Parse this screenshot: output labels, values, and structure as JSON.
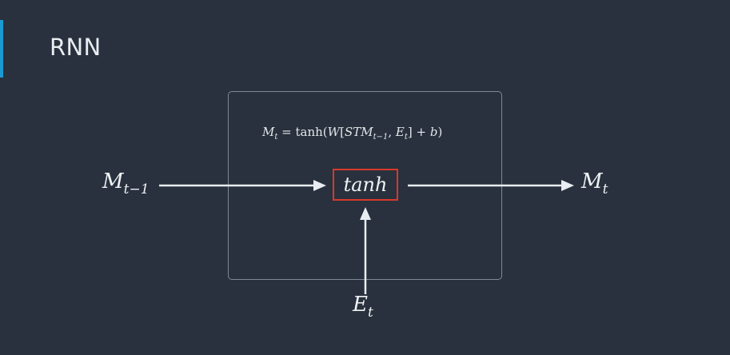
{
  "slide": {
    "title": "RNN",
    "accent_color": "#1b9ad1"
  },
  "diagram": {
    "equation": {
      "lhs_var": "M",
      "lhs_sub": "t",
      "rhs_func": "tanh(",
      "rhs_var": "W",
      "rhs_bracket_open": "[",
      "rhs_stm": "STM",
      "rhs_stm_sub": "t−1",
      "rhs_sep": ", ",
      "rhs_e": "E",
      "rhs_e_sub": "t",
      "rhs_bracket_close": "] + ",
      "rhs_b": "b",
      "rhs_close": ")"
    },
    "activation": {
      "label": "tanh",
      "border_color": "#d9392b"
    },
    "inputs": {
      "prev_memory": {
        "symbol": "M",
        "subscript": "t−1"
      },
      "embedding": {
        "symbol": "E",
        "subscript": "t"
      }
    },
    "output": {
      "symbol": "M",
      "subscript": "t"
    }
  }
}
